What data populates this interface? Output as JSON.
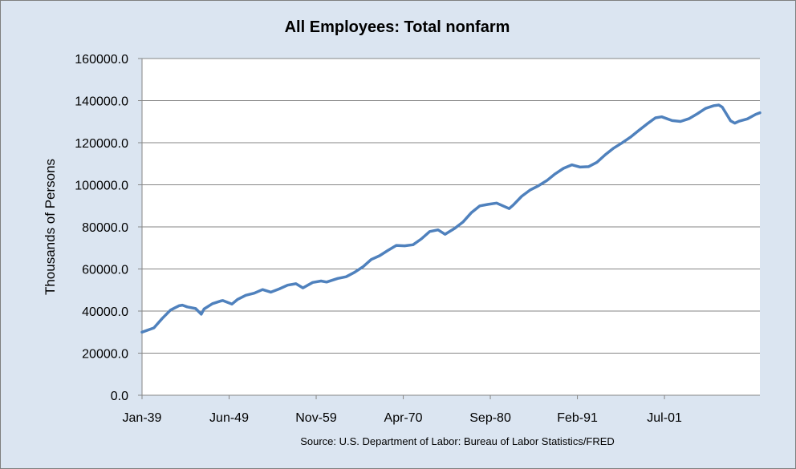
{
  "chart_data": {
    "type": "line",
    "title": "All Employees: Total nonfarm",
    "xlabel": "",
    "ylabel": "Thousands of Persons",
    "source": "Source: U.S. Department of Labor: Bureau of Labor Statistics/FRED",
    "ylim": [
      0,
      160000
    ],
    "y_ticks": [
      "0.0",
      "20000.0",
      "40000.0",
      "60000.0",
      "80000.0",
      "100000.0",
      "120000.0",
      "140000.0",
      "160000.0"
    ],
    "x_ticks": [
      "Jan-39",
      "Jun-49",
      "Nov-59",
      "Apr-70",
      "Sep-80",
      "Feb-91",
      "Jul-01"
    ],
    "grid": true,
    "legend": "none",
    "line_color": "#4f81bd",
    "series": [
      {
        "x": [
          "1939-01",
          "1940-06",
          "1941-06",
          "1942-06",
          "1943-06",
          "1943-11",
          "1944-06",
          "1945-06",
          "1946-02",
          "1946-06",
          "1947-06",
          "1948-06",
          "1948-09",
          "1949-10",
          "1950-06",
          "1951-06",
          "1952-06",
          "1953-06",
          "1954-06",
          "1955-06",
          "1956-06",
          "1957-06",
          "1958-04",
          "1959-06",
          "1960-06",
          "1961-02",
          "1962-06",
          "1963-06",
          "1964-06",
          "1965-06",
          "1966-06",
          "1967-06",
          "1968-06",
          "1969-06",
          "1970-06",
          "1971-06",
          "1972-06",
          "1973-06",
          "1974-06",
          "1975-04",
          "1976-06",
          "1977-06",
          "1978-06",
          "1979-06",
          "1980-06",
          "1981-06",
          "1982-12",
          "1983-06",
          "1984-06",
          "1985-06",
          "1986-06",
          "1987-06",
          "1988-06",
          "1989-06",
          "1990-06",
          "1991-06",
          "1992-06",
          "1993-06",
          "1994-06",
          "1995-06",
          "1996-06",
          "1997-06",
          "1998-06",
          "1999-06",
          "2000-06",
          "2001-03",
          "2002-06",
          "2003-06",
          "2004-06",
          "2005-06",
          "2006-06",
          "2007-06",
          "2008-01",
          "2008-06",
          "2009-06",
          "2009-12",
          "2010-06",
          "2011-06",
          "2012-06",
          "2012-12"
        ],
        "y": [
          30000,
          32000,
          36500,
          40500,
          42500,
          42800,
          42000,
          41200,
          38500,
          41000,
          43500,
          44800,
          45000,
          43300,
          45500,
          47500,
          48500,
          50200,
          49000,
          50500,
          52300,
          53000,
          51000,
          53600,
          54300,
          53800,
          55500,
          56300,
          58400,
          61000,
          64500,
          66300,
          68800,
          71200,
          71000,
          71500,
          74300,
          77800,
          78600,
          76500,
          79300,
          82400,
          86800,
          90000,
          90700,
          91300,
          88700,
          90400,
          94500,
          97500,
          99500,
          102000,
          105200,
          107800,
          109500,
          108400,
          108600,
          110700,
          114300,
          117400,
          119900,
          122600,
          125800,
          128900,
          131800,
          132300,
          130500,
          130100,
          131400,
          133700,
          136300,
          137600,
          137900,
          136900,
          130400,
          129300,
          130200,
          131300,
          133500,
          134200
        ]
      }
    ]
  }
}
